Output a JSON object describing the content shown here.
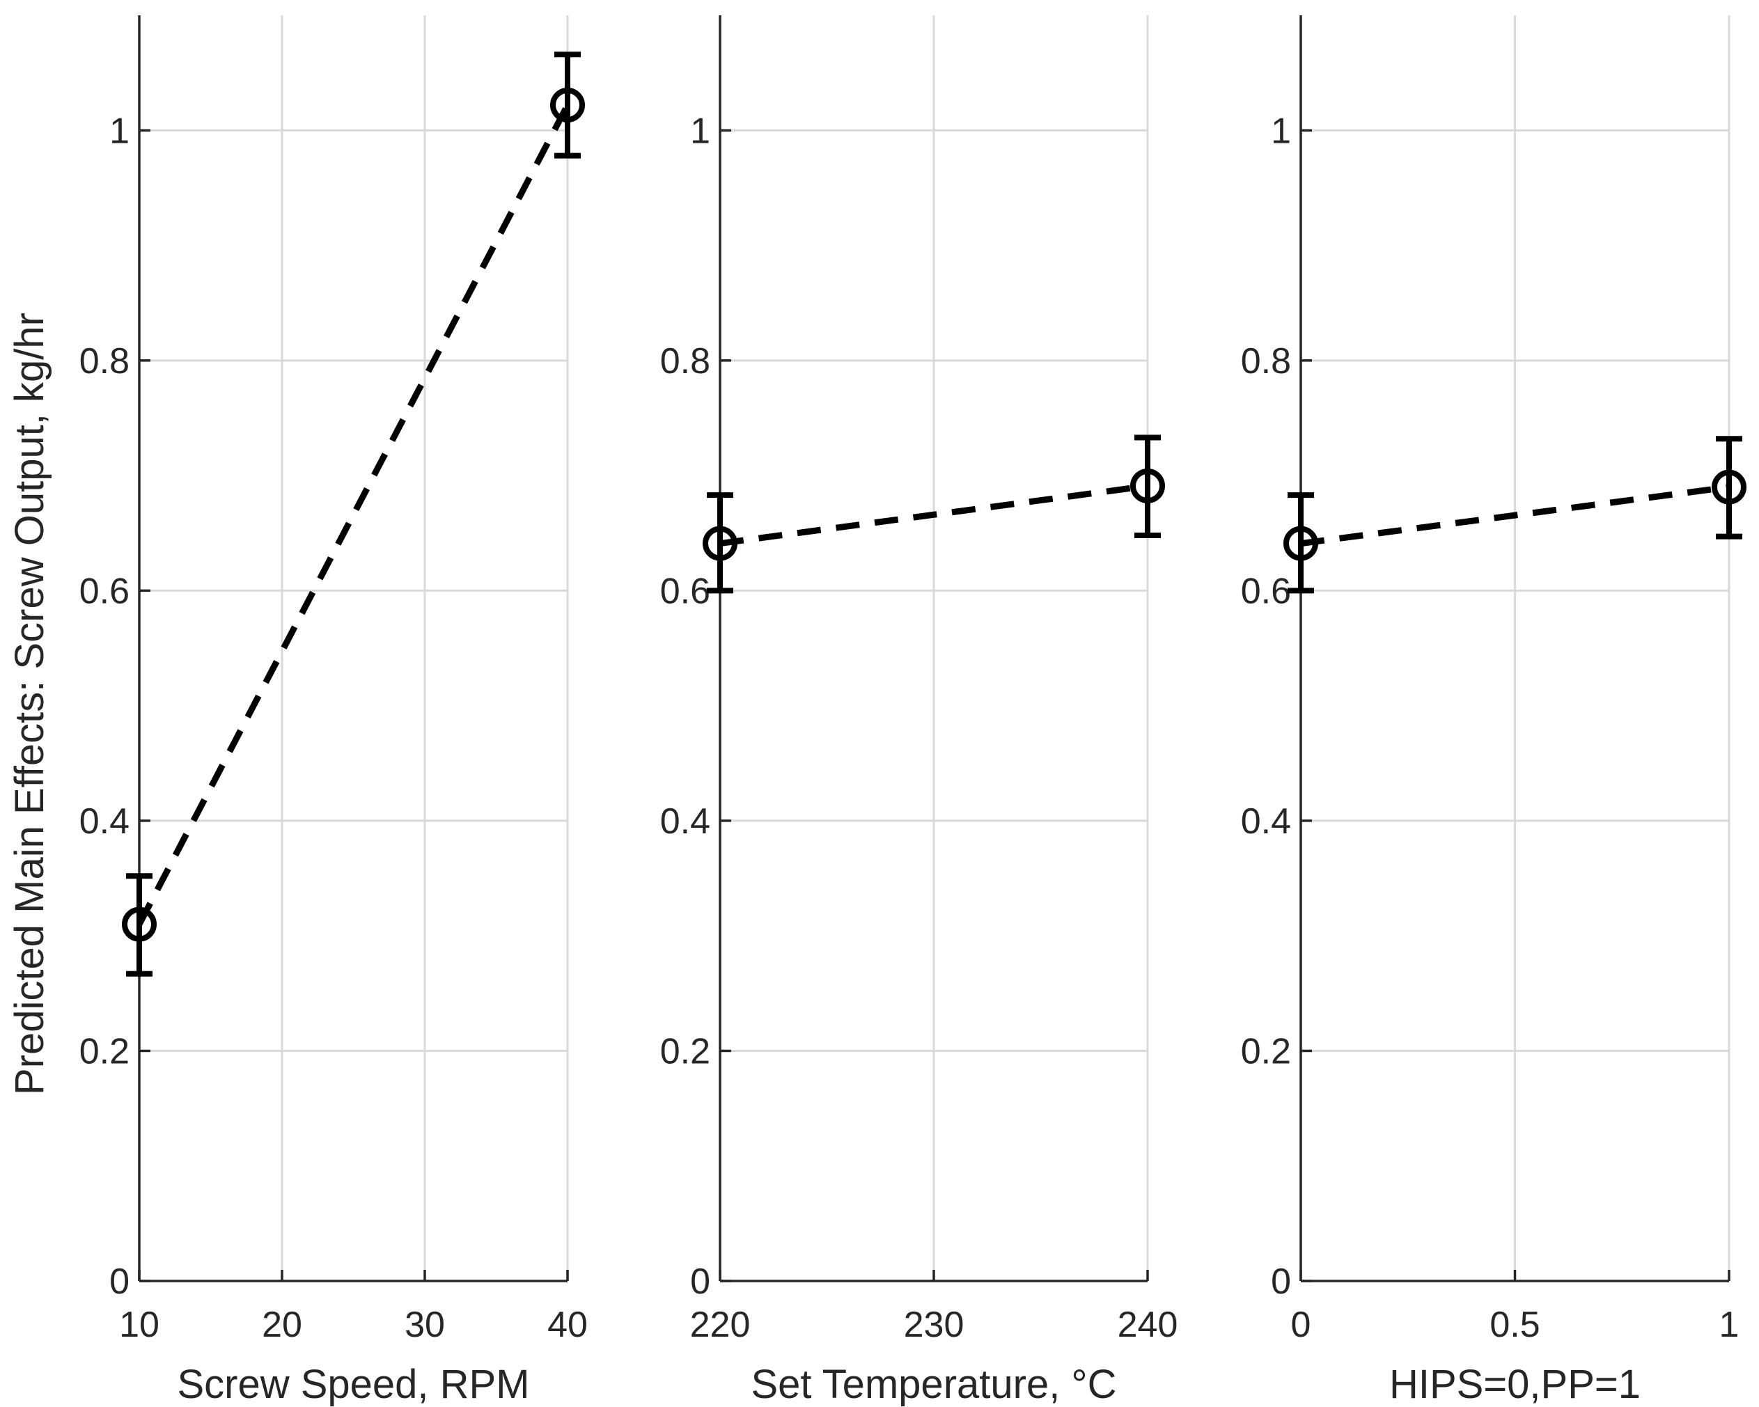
{
  "chart_data": [
    {
      "type": "line",
      "ylabel": "Predicted Main Effects: Screw Output, kg/hr",
      "xlabel": "Screw Speed, RPM",
      "xlim": [
        10,
        40
      ],
      "ylim": [
        0,
        1.1
      ],
      "xticks": [
        10,
        20,
        30,
        40
      ],
      "xtick_labels": [
        "10",
        "20",
        "30",
        "40"
      ],
      "yticks": [
        0,
        0.2,
        0.4,
        0.6,
        0.8,
        1
      ],
      "ytick_labels": [
        "0",
        "0.2",
        "0.4",
        "0.6",
        "0.8",
        "1"
      ],
      "grid": true,
      "line_style": "dashed",
      "marker": "open-circle",
      "color": "#000000",
      "x": [
        10,
        40
      ],
      "y": [
        0.31,
        1.022
      ],
      "err_low": [
        0.267,
        0.978
      ],
      "err_high": [
        0.352,
        1.066
      ]
    },
    {
      "type": "line",
      "ylabel": "",
      "xlabel": "Set Temperature, °C",
      "xlim": [
        220,
        240
      ],
      "ylim": [
        0,
        1.1
      ],
      "xticks": [
        220,
        230,
        240
      ],
      "xtick_labels": [
        "220",
        "230",
        "240"
      ],
      "yticks": [
        0,
        0.2,
        0.4,
        0.6,
        0.8,
        1
      ],
      "ytick_labels": [
        "0",
        "0.2",
        "0.4",
        "0.6",
        "0.8",
        "1"
      ],
      "grid": true,
      "line_style": "dashed",
      "marker": "open-circle",
      "color": "#000000",
      "x": [
        220,
        240
      ],
      "y": [
        0.641,
        0.691
      ],
      "err_low": [
        0.6,
        0.648
      ],
      "err_high": [
        0.683,
        0.733
      ]
    },
    {
      "type": "line",
      "ylabel": "",
      "xlabel": "HIPS=0,PP=1",
      "xlim": [
        0,
        1
      ],
      "ylim": [
        0,
        1.1
      ],
      "xticks": [
        0,
        0.5,
        1
      ],
      "xtick_labels": [
        "0",
        "0.5",
        "1"
      ],
      "yticks": [
        0,
        0.2,
        0.4,
        0.6,
        0.8,
        1
      ],
      "ytick_labels": [
        "0",
        "0.2",
        "0.4",
        "0.6",
        "0.8",
        "1"
      ],
      "grid": true,
      "line_style": "dashed",
      "marker": "open-circle",
      "color": "#000000",
      "x": [
        0,
        1
      ],
      "y": [
        0.641,
        0.69
      ],
      "err_low": [
        0.6,
        0.647
      ],
      "err_high": [
        0.683,
        0.732
      ]
    }
  ]
}
